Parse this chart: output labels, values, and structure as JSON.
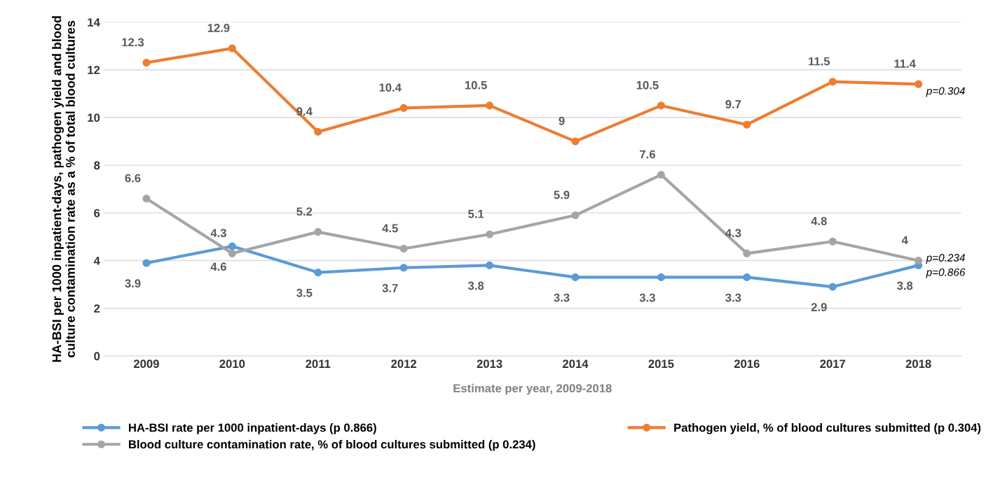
{
  "chart_data": {
    "type": "line",
    "xlabel": "Estimate per year, 2009-2018",
    "ylabel": "HA-BSI per 1000 inpatient-days, pathogen yield and blood culture contamination rate as a % of total blood cultures",
    "categories": [
      "2009",
      "2010",
      "2011",
      "2012",
      "2013",
      "2014",
      "2015",
      "2016",
      "2017",
      "2018"
    ],
    "series": [
      {
        "name": "HA-BSI rate per 1000 inpatient-days (p 0.866)",
        "color": "#5b9bd5",
        "values": [
          3.9,
          4.6,
          3.5,
          3.7,
          3.8,
          3.3,
          3.3,
          3.3,
          2.9,
          3.8
        ]
      },
      {
        "name": "Pathogen yield, % of blood cultures submitted (p 0.304)",
        "color": "#ed7d31",
        "values": [
          12.3,
          12.9,
          9.4,
          10.4,
          10.5,
          9,
          10.5,
          9.7,
          11.5,
          11.4
        ]
      },
      {
        "name": "Blood culture contamination rate, % of blood cultures submitted (p 0.234)",
        "color": "#a5a5a5",
        "values": [
          6.6,
          4.3,
          5.2,
          4.5,
          5.1,
          5.9,
          7.6,
          4.3,
          4.8,
          4
        ]
      }
    ],
    "ylim": [
      0,
      14
    ],
    "yticks": [
      0,
      2,
      4,
      6,
      8,
      10,
      12,
      14
    ],
    "grid": "y",
    "legend": "bottom",
    "marker": "circle",
    "line_style": "solid",
    "data_labels": true,
    "annotations": [
      {
        "text": "p=0.304",
        "x": "2018",
        "y": 11.4
      },
      {
        "text": "p=0.234",
        "x": "2018",
        "y": 4
      },
      {
        "text": "p=0.866",
        "x": "2018",
        "y": 3.8
      }
    ]
  }
}
